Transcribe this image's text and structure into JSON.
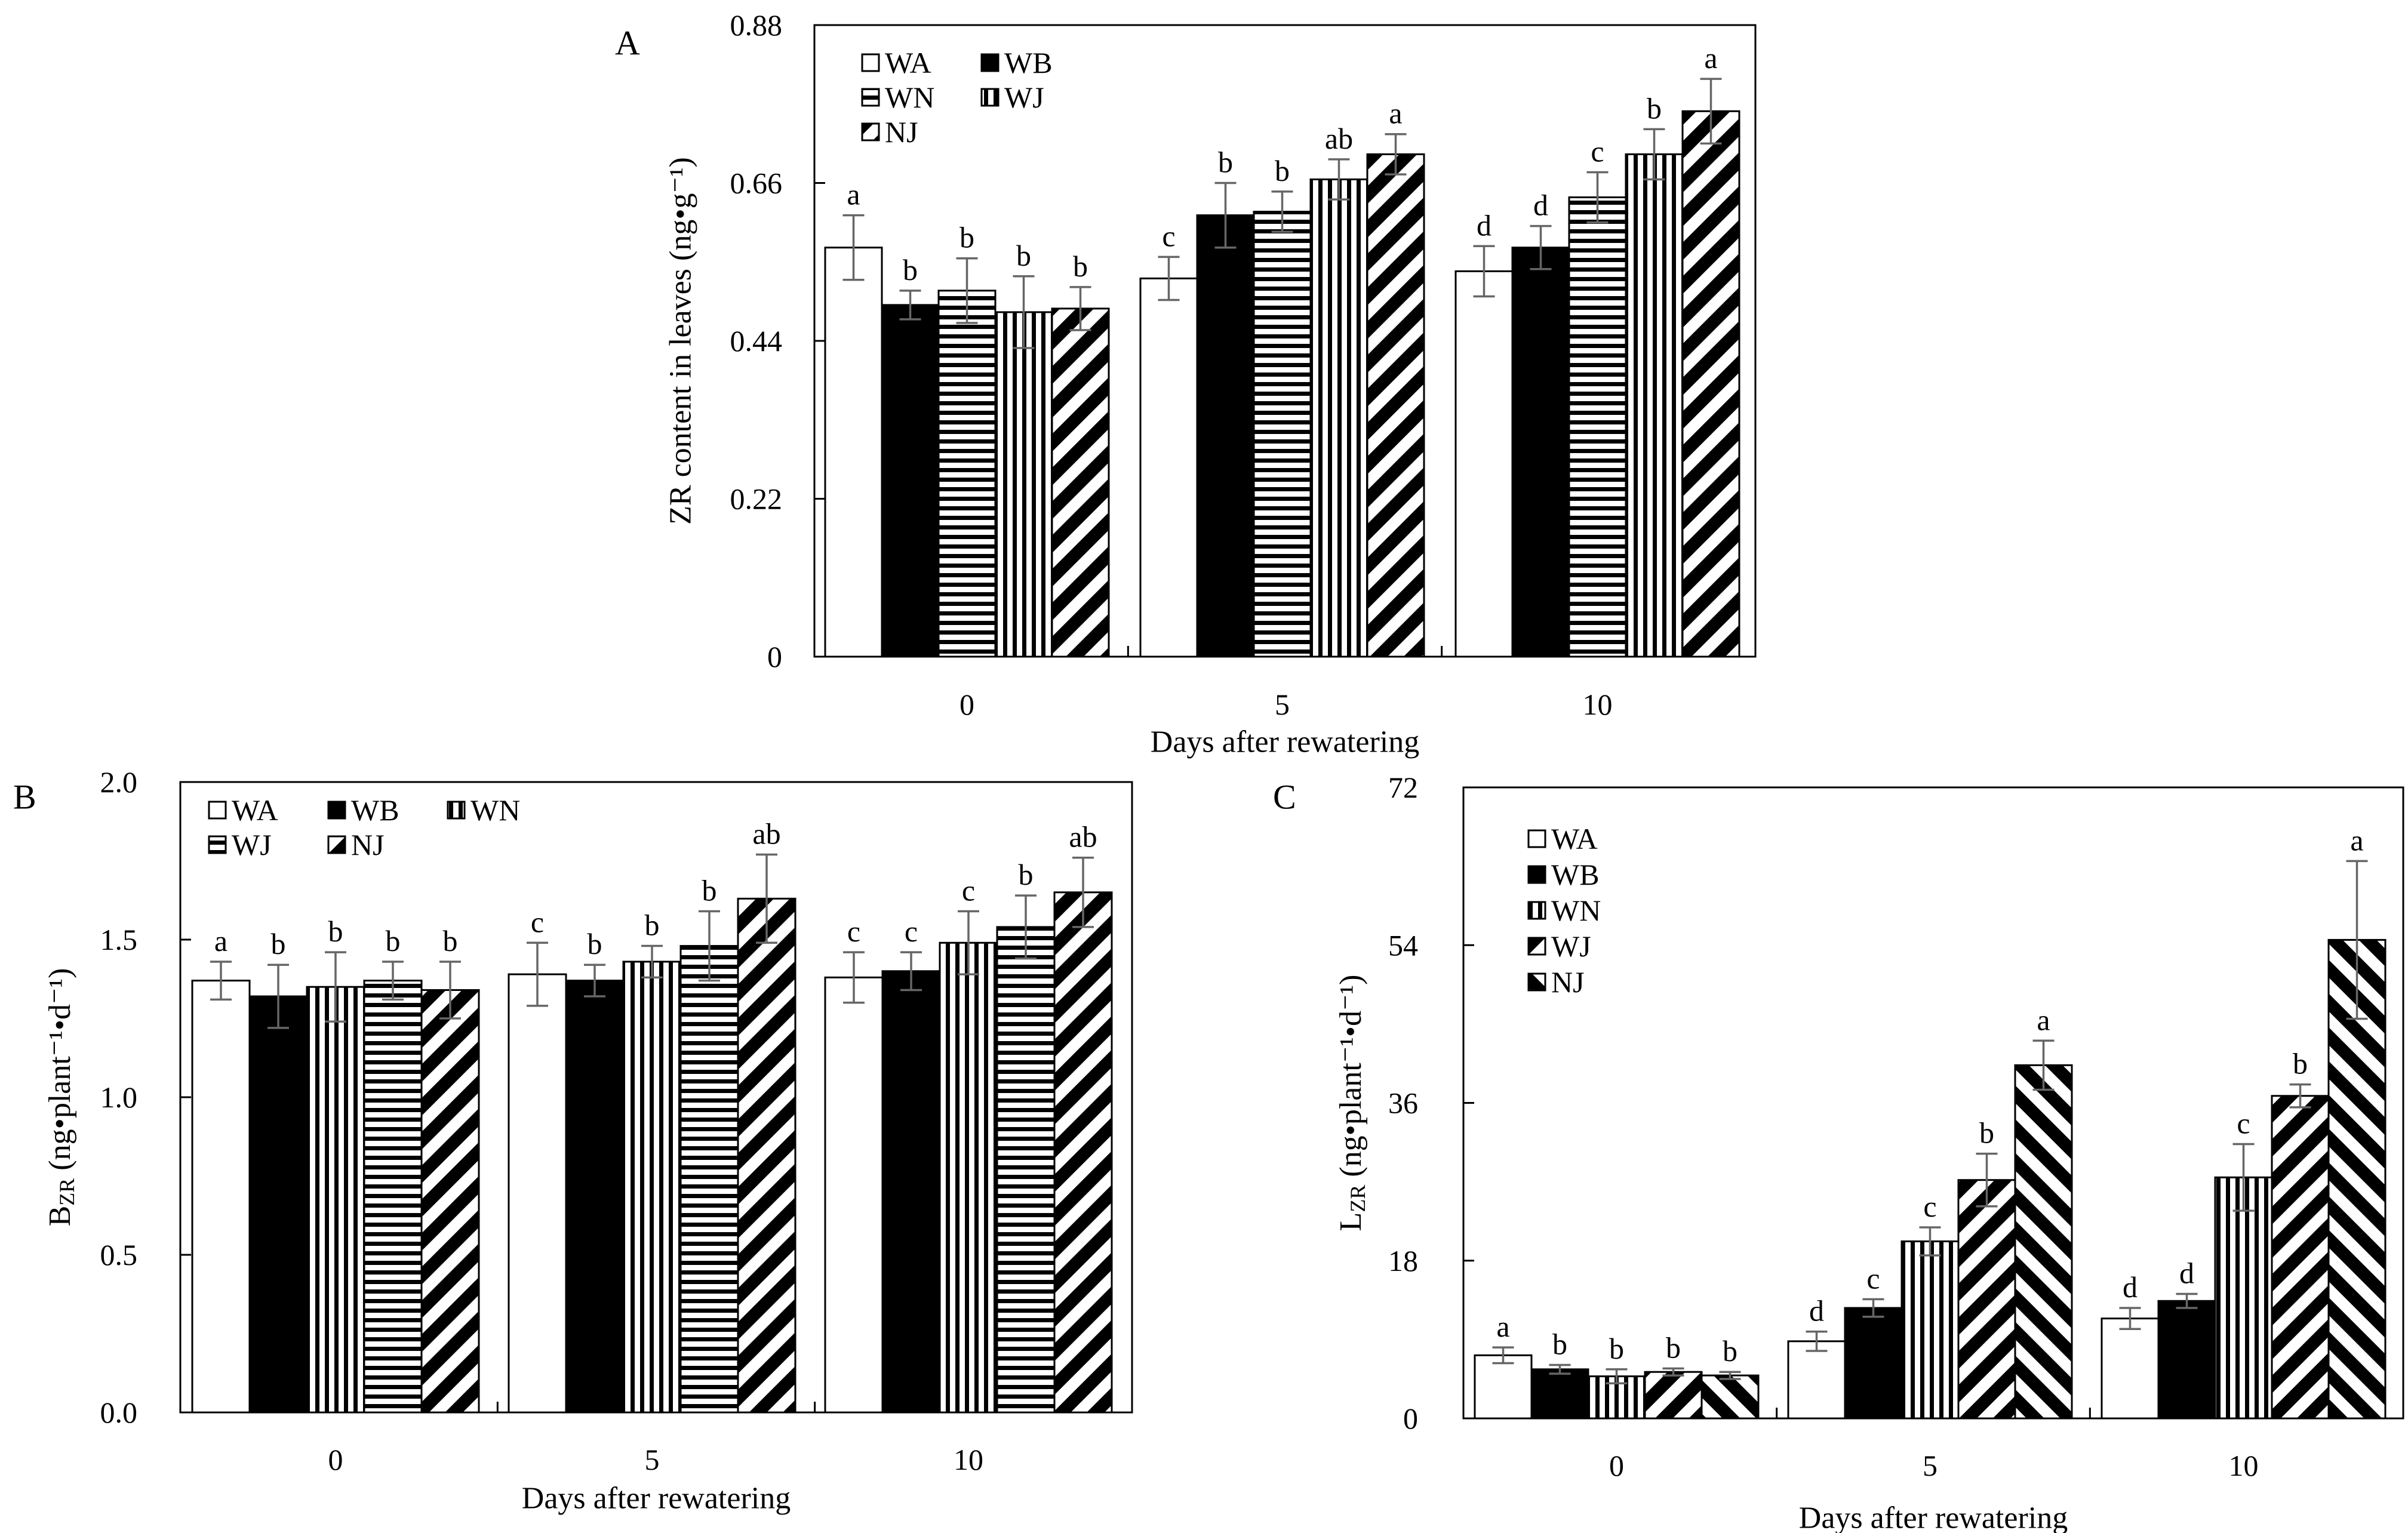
{
  "chart_data": [
    {
      "panel_label": "A",
      "type": "bar",
      "categories": [
        "0",
        "5",
        "10"
      ],
      "xlabel": "Days after rewatering",
      "ylabel": "ZR content in leaves (ng•g⁻¹)",
      "ylim": [
        0,
        0.88
      ],
      "yticks": [
        "0",
        "0.22",
        "0.44",
        "0.66",
        "0.88"
      ],
      "legend_position": "top-left",
      "legend_rows": [
        [
          "WA",
          "WB"
        ],
        [
          "WN",
          "WJ"
        ],
        [
          "NJ"
        ]
      ],
      "series": [
        {
          "name": "WA",
          "pattern": "white",
          "values": [
            0.57,
            0.527,
            0.537
          ],
          "errors": [
            0.045,
            0.03,
            0.035
          ],
          "letters": [
            "a",
            "c",
            "d"
          ]
        },
        {
          "name": "WB",
          "pattern": "black",
          "values": [
            0.49,
            0.615,
            0.57
          ],
          "errors": [
            0.02,
            0.045,
            0.03
          ],
          "letters": [
            "b",
            "b",
            "d"
          ]
        },
        {
          "name": "WN",
          "pattern": "hstripe",
          "values": [
            0.51,
            0.62,
            0.64
          ],
          "errors": [
            0.045,
            0.028,
            0.035
          ],
          "letters": [
            "b",
            "b",
            "c"
          ]
        },
        {
          "name": "WJ",
          "pattern": "vstripe",
          "values": [
            0.48,
            0.665,
            0.7
          ],
          "errors": [
            0.05,
            0.028,
            0.035
          ],
          "letters": [
            "b",
            "ab",
            "b"
          ]
        },
        {
          "name": "NJ",
          "pattern": "diag-back",
          "values": [
            0.485,
            0.7,
            0.76
          ],
          "errors": [
            0.03,
            0.028,
            0.045
          ],
          "letters": [
            "b",
            "a",
            "a"
          ]
        }
      ]
    },
    {
      "panel_label": "B",
      "type": "bar",
      "categories": [
        "0",
        "5",
        "10"
      ],
      "xlabel": "Days after rewatering",
      "ylabel": "B_ZR (ng•plant⁻¹•d⁻¹)",
      "ylabel_main": "B",
      "ylabel_sub": "ZR",
      "ylabel_rest": " (ng•plant⁻¹•d⁻¹)",
      "ylim": [
        0,
        2.0
      ],
      "yticks": [
        "0.0",
        "0.5",
        "1.0",
        "1.5",
        "2.0"
      ],
      "legend_position": "top-left",
      "legend_rows": [
        [
          "WA",
          "WB",
          "WN"
        ],
        [
          "WJ",
          "NJ"
        ]
      ],
      "series": [
        {
          "name": "WA",
          "pattern": "white",
          "values": [
            1.37,
            1.39,
            1.38
          ],
          "errors": [
            0.06,
            0.1,
            0.08
          ],
          "letters": [
            "a",
            "c",
            "c"
          ]
        },
        {
          "name": "WB",
          "pattern": "black",
          "values": [
            1.32,
            1.37,
            1.4
          ],
          "errors": [
            0.1,
            0.05,
            0.06
          ],
          "letters": [
            "b",
            "b",
            "c"
          ]
        },
        {
          "name": "WN",
          "pattern": "vstripe",
          "values": [
            1.35,
            1.43,
            1.49
          ],
          "errors": [
            0.11,
            0.05,
            0.1
          ],
          "letters": [
            "b",
            "b",
            "c"
          ]
        },
        {
          "name": "WJ",
          "pattern": "hstripe",
          "values": [
            1.37,
            1.48,
            1.54
          ],
          "errors": [
            0.06,
            0.11,
            0.1
          ],
          "letters": [
            "b",
            "b",
            "b"
          ]
        },
        {
          "name": "NJ",
          "pattern": "diag-back",
          "values": [
            1.34,
            1.63,
            1.65
          ],
          "errors": [
            0.09,
            0.14,
            0.11
          ],
          "letters": [
            "b",
            "ab",
            "ab"
          ]
        }
      ]
    },
    {
      "panel_label": "C",
      "type": "bar",
      "categories": [
        "0",
        "5",
        "10"
      ],
      "xlabel": "Days after rewatering",
      "ylabel": "L_ZR (ng•plant⁻¹•d⁻¹)",
      "ylabel_main": "L",
      "ylabel_sub": "ZR",
      "ylabel_rest": " (ng•plant⁻¹•d⁻¹)",
      "ylim": [
        0,
        72
      ],
      "yticks": [
        "0",
        "18",
        "36",
        "54",
        "72"
      ],
      "legend_position": "top-left",
      "legend_rows": [
        [
          "WA"
        ],
        [
          "WB"
        ],
        [
          "WN"
        ],
        [
          "WJ"
        ],
        [
          "NJ"
        ]
      ],
      "series": [
        {
          "name": "WA",
          "pattern": "white",
          "values": [
            7.2,
            8.8,
            11.4
          ],
          "errors": [
            0.9,
            1.1,
            1.2
          ],
          "letters": [
            "a",
            "d",
            "d"
          ]
        },
        {
          "name": "WB",
          "pattern": "black",
          "values": [
            5.6,
            12.6,
            13.4
          ],
          "errors": [
            0.5,
            1.0,
            0.8
          ],
          "letters": [
            "b",
            "c",
            "d"
          ]
        },
        {
          "name": "WN",
          "pattern": "vstripe",
          "values": [
            4.8,
            20.2,
            27.5
          ],
          "errors": [
            0.8,
            1.6,
            3.8
          ],
          "letters": [
            "b",
            "c",
            "c"
          ]
        },
        {
          "name": "WJ",
          "pattern": "diag-back",
          "values": [
            5.3,
            27.2,
            36.8
          ],
          "errors": [
            0.4,
            3.0,
            1.3
          ],
          "letters": [
            "b",
            "b",
            "b"
          ]
        },
        {
          "name": "NJ",
          "pattern": "diag-fwd",
          "values": [
            4.9,
            40.3,
            54.6
          ],
          "errors": [
            0.4,
            2.8,
            9.0
          ],
          "letters": [
            "b",
            "a",
            "a"
          ]
        }
      ]
    }
  ]
}
